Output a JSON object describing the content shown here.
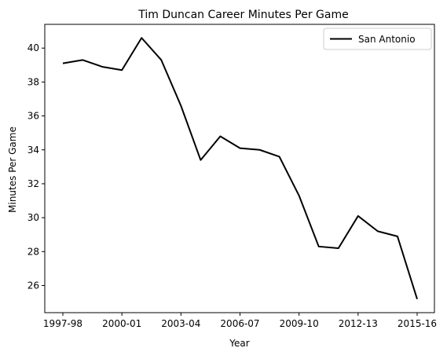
{
  "chart_data": {
    "type": "line",
    "title": "Tim Duncan Career Minutes Per Game",
    "xlabel": "Year",
    "ylabel": "Minutes Per Game",
    "x": [
      "1997-98",
      "1998-99",
      "1999-00",
      "2000-01",
      "2001-02",
      "2002-03",
      "2003-04",
      "2004-05",
      "2005-06",
      "2006-07",
      "2007-08",
      "2008-09",
      "2009-10",
      "2010-11",
      "2011-12",
      "2012-13",
      "2013-14",
      "2014-15",
      "2015-16"
    ],
    "xticks": [
      "1997-98",
      "2000-01",
      "2003-04",
      "2006-07",
      "2009-10",
      "2012-13",
      "2015-16"
    ],
    "yticks": [
      26,
      28,
      30,
      32,
      34,
      36,
      38,
      40
    ],
    "ylim": [
      24.4,
      41.4
    ],
    "grid": false,
    "legend_position": "top-right",
    "series": [
      {
        "name": "San Antonio",
        "color": "#000000",
        "values": [
          39.1,
          39.3,
          38.9,
          38.7,
          40.6,
          39.3,
          36.6,
          33.4,
          34.8,
          34.1,
          34.0,
          33.6,
          31.3,
          28.3,
          28.2,
          30.1,
          29.2,
          28.9,
          25.2
        ]
      }
    ]
  }
}
